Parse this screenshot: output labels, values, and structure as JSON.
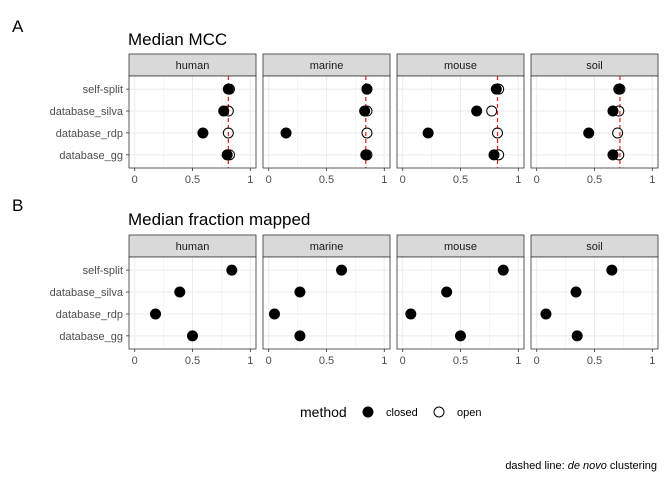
{
  "panels": [
    "A",
    "B"
  ],
  "legend": {
    "title": "method",
    "items": [
      {
        "label": "closed",
        "filled": true
      },
      {
        "label": "open",
        "filled": false
      }
    ]
  },
  "footnote": {
    "prefix": "dashed line: ",
    "emphasis": "de novo",
    "suffix": " clustering"
  },
  "colors": {
    "reference_line": "#e41a1c",
    "strip_fill": "#d9d9d9",
    "grid": "#ebebeb",
    "point": "#000000"
  },
  "chart_data": [
    {
      "type": "scatter",
      "title": "Median MCC",
      "facets": [
        "human",
        "marine",
        "mouse",
        "soil"
      ],
      "categories": [
        "self-split",
        "database_silva",
        "database_rdp",
        "database_gg"
      ],
      "xlim": [
        0,
        1
      ],
      "xticks": [
        "0",
        "0.5",
        "1"
      ],
      "grid": true,
      "reference_lines": {
        "human": 0.81,
        "marine": 0.84,
        "mouse": 0.82,
        "soil": 0.72
      },
      "series": [
        {
          "name": "closed",
          "values": {
            "human": [
              0.81,
              0.77,
              0.59,
              0.8
            ],
            "marine": [
              0.85,
              0.83,
              0.15,
              0.84
            ],
            "mouse": [
              0.81,
              0.64,
              0.22,
              0.79
            ],
            "soil": [
              0.71,
              0.66,
              0.45,
              0.66
            ]
          }
        },
        {
          "name": "open",
          "values": {
            "human": [
              0.82,
              0.81,
              0.81,
              0.82
            ],
            "marine": [
              0.85,
              0.85,
              0.85,
              0.85
            ],
            "mouse": [
              0.83,
              0.77,
              0.82,
              0.83
            ],
            "soil": [
              0.72,
              0.71,
              0.7,
              0.71
            ]
          }
        }
      ]
    },
    {
      "type": "scatter",
      "title": "Median fraction mapped",
      "facets": [
        "human",
        "marine",
        "mouse",
        "soil"
      ],
      "categories": [
        "self-split",
        "database_silva",
        "database_rdp",
        "database_gg"
      ],
      "xlim": [
        0,
        1
      ],
      "xticks": [
        "0",
        "0.5",
        "1"
      ],
      "grid": true,
      "series": [
        {
          "name": "closed",
          "values": {
            "human": [
              0.84,
              0.39,
              0.18,
              0.5
            ],
            "marine": [
              0.63,
              0.27,
              0.05,
              0.27
            ],
            "mouse": [
              0.87,
              0.38,
              0.07,
              0.5
            ],
            "soil": [
              0.65,
              0.34,
              0.08,
              0.35
            ]
          }
        }
      ]
    }
  ]
}
